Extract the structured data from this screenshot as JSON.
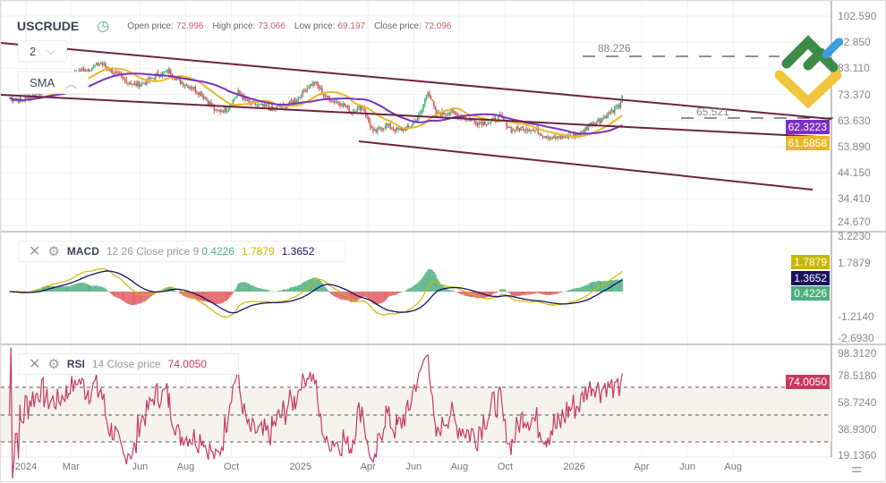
{
  "header": {
    "symbol": "USCRUDE",
    "open_label": "Open price:",
    "open": "72.996",
    "high_label": "High price:",
    "high": "73.066",
    "low_label": "Low price:",
    "low": "69.197",
    "close_label": "Close price:",
    "close": "72.096"
  },
  "controls": {
    "interval": "2",
    "overlay": "SMA"
  },
  "macd": {
    "name": "MACD",
    "params": "12 26 Close price 9",
    "hist": "0.4226",
    "macd": "1.7879",
    "signal": "1.3652"
  },
  "rsi": {
    "name": "RSI",
    "params": "14 Close price",
    "value": "74.0050"
  },
  "levels": {
    "upper": "88.226",
    "lower": "65.521"
  },
  "tags": {
    "sma_slow": "62.3223",
    "sma_fast": "61.5858",
    "macd": "1.7879",
    "signal": "1.3652",
    "hist": "0.4226",
    "rsi": "74.0050"
  },
  "colors": {
    "up": "#4caf7d",
    "down": "#e2575c",
    "sma_slow": "#7b2fbf",
    "sma_fast": "#e9b824",
    "channel": "#6b2340",
    "macd": "#c9b800",
    "signal": "#1a1060",
    "rsi": "#c9395f"
  },
  "chart_data": [
    {
      "type": "candlestick",
      "title": "USCRUDE",
      "price_axis_ticks": [
        "102.590",
        "92.850",
        "83.110",
        "73.370",
        "63.630",
        "53.890",
        "44.150",
        "34.410",
        "24.670"
      ],
      "x_ticks": [
        "2024",
        "Mar",
        "Jun",
        "Aug",
        "Oct",
        "2025",
        "Apr",
        "Jun",
        "Aug",
        "Oct",
        "2026",
        "Apr",
        "Jun",
        "Aug"
      ],
      "closes": [
        [
          "2023-12-10",
          72
        ],
        [
          "2023-12-25",
          71
        ],
        [
          "2024-01-10",
          73
        ],
        [
          "2024-01-25",
          75
        ],
        [
          "2024-02-10",
          76
        ],
        [
          "2024-02-25",
          78
        ],
        [
          "2024-03-10",
          82
        ],
        [
          "2024-03-25",
          83
        ],
        [
          "2024-04-10",
          85
        ],
        [
          "2024-04-25",
          82
        ],
        [
          "2024-05-10",
          79
        ],
        [
          "2024-05-25",
          77
        ],
        [
          "2024-06-10",
          78
        ],
        [
          "2024-06-25",
          81
        ],
        [
          "2024-07-10",
          82
        ],
        [
          "2024-07-25",
          78
        ],
        [
          "2024-08-10",
          76
        ],
        [
          "2024-08-25",
          73
        ],
        [
          "2024-09-10",
          67
        ],
        [
          "2024-09-25",
          68
        ],
        [
          "2024-10-10",
          74
        ],
        [
          "2024-10-25",
          70
        ],
        [
          "2024-11-10",
          69
        ],
        [
          "2024-11-25",
          68
        ],
        [
          "2024-12-10",
          69
        ],
        [
          "2024-12-25",
          71
        ],
        [
          "2025-01-10",
          76
        ],
        [
          "2025-01-20",
          78
        ],
        [
          "2025-02-05",
          72
        ],
        [
          "2025-02-25",
          70
        ],
        [
          "2025-03-10",
          67
        ],
        [
          "2025-03-25",
          69
        ],
        [
          "2025-04-08",
          59
        ],
        [
          "2025-04-25",
          62
        ],
        [
          "2025-05-10",
          60
        ],
        [
          "2025-05-25",
          61
        ],
        [
          "2025-06-10",
          66
        ],
        [
          "2025-06-20",
          75
        ],
        [
          "2025-07-01",
          66
        ],
        [
          "2025-07-20",
          67
        ],
        [
          "2025-08-05",
          65
        ],
        [
          "2025-08-25",
          63
        ],
        [
          "2025-09-10",
          63
        ],
        [
          "2025-09-25",
          65
        ],
        [
          "2025-10-10",
          60
        ],
        [
          "2025-10-25",
          61
        ],
        [
          "2025-11-10",
          60
        ],
        [
          "2025-11-25",
          58
        ],
        [
          "2025-12-10",
          57
        ],
        [
          "2025-12-25",
          58
        ],
        [
          "2026-01-10",
          59
        ],
        [
          "2026-01-25",
          63
        ],
        [
          "2026-02-05",
          64
        ],
        [
          "2026-02-20",
          67
        ],
        [
          "2026-03-02",
          69
        ],
        [
          "2026-03-06",
          73
        ]
      ]
    },
    {
      "type": "macd",
      "axis_ticks": [
        "3.2230",
        "1.7879",
        "-1.2140",
        "-2.6930"
      ]
    },
    {
      "type": "rsi",
      "axis_ticks": [
        "98.3120",
        "78.5180",
        "58.7240",
        "38.9300",
        "19.1360"
      ],
      "bands": [
        70,
        50,
        30
      ]
    }
  ]
}
